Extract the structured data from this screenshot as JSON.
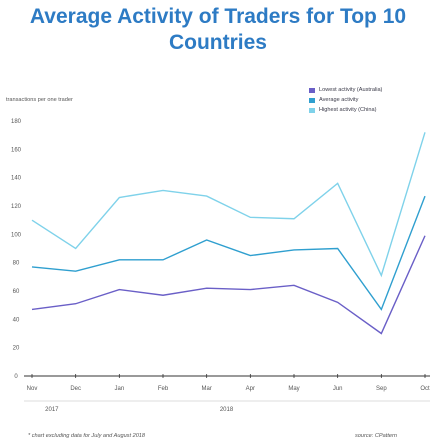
{
  "chart_data": {
    "type": "line",
    "title": "Average Activity of Traders for Top 10 Countries",
    "ylabel": "transactions per one trader",
    "categories": [
      "Nov",
      "Dec",
      "Jan",
      "Feb",
      "Mar",
      "Apr",
      "May",
      "Jun",
      "Sep",
      "Oct"
    ],
    "years": [
      {
        "label": "2017",
        "index": 0.5
      },
      {
        "label": "2018",
        "index": 4.5
      }
    ],
    "ylim": [
      0,
      180
    ],
    "yticks": [
      0,
      20,
      40,
      60,
      80,
      100,
      120,
      140,
      160,
      180
    ],
    "series": [
      {
        "name": "Lowest activity (Australia)",
        "color": "#6a5fc7",
        "values": [
          47,
          51,
          61,
          57,
          62,
          61,
          64,
          52,
          30,
          99
        ]
      },
      {
        "name": "Average activity",
        "color": "#2f9fcf",
        "values": [
          77,
          74,
          82,
          82,
          96,
          85,
          89,
          90,
          47,
          127
        ]
      },
      {
        "name": "Highest activity (China)",
        "color": "#7fd2ea",
        "values": [
          110,
          90,
          126,
          131,
          127,
          112,
          111,
          136,
          71,
          172
        ]
      }
    ],
    "grid": false,
    "legend_position": "top-right",
    "footnote": "* chart excluding data for July and August 2018",
    "source": "source: CPattern"
  }
}
